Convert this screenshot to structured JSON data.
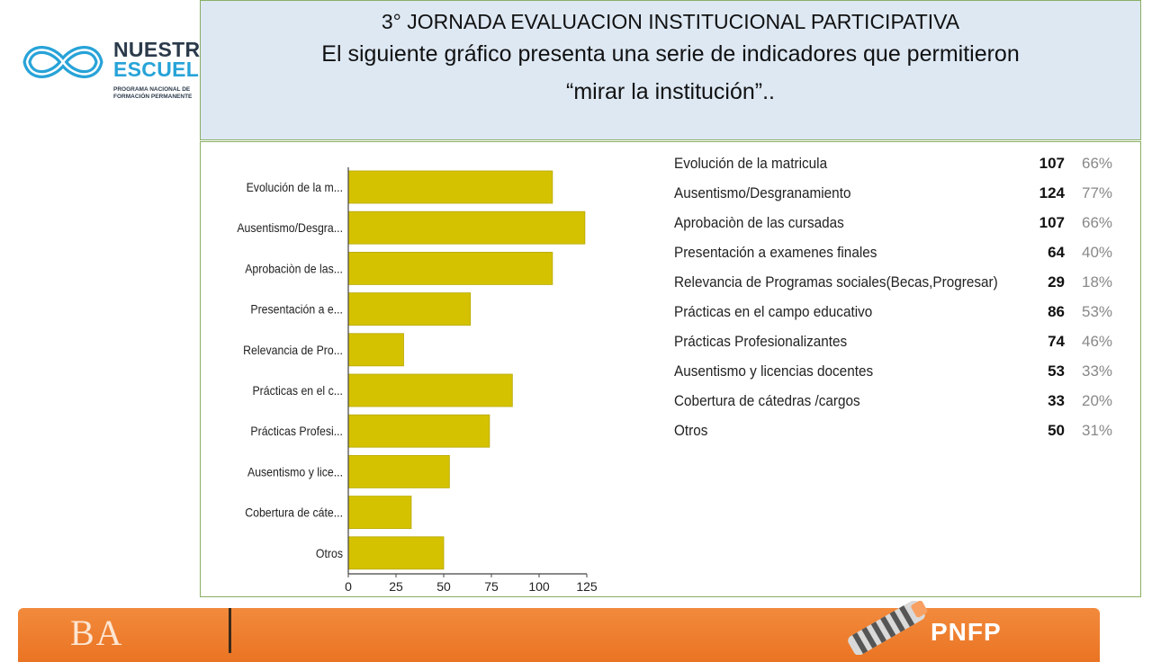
{
  "logo": {
    "word1": "NUESTRA",
    "word2": "ESCUELA",
    "sub1": "PROGRAMA NACIONAL DE",
    "sub2": "FORMACIÓN PERMANENTE"
  },
  "header": {
    "line1": "3° JORNADA EVALUACION INSTITUCIONAL PARTICIPATIVA",
    "line2": "El siguiente gráfico presenta una serie de indicadores que permitieron",
    "line3": "“mirar  la institución”.."
  },
  "colors": {
    "bar": "#d4c200",
    "bar_stroke": "#b8a800",
    "header_bg": "#dde8f3",
    "banner": "#ee7a2a"
  },
  "chart_data": {
    "type": "bar",
    "orientation": "horizontal",
    "categories": [
      "Evolución de la m...",
      "Ausentismo/Desgra...",
      "Aprobaciòn de las...",
      "Presentación a  e...",
      "Relevancia de Pro...",
      "Prácticas en el c...",
      "Prácticas Profesi...",
      "Ausentismo y lice...",
      "Cobertura de cáte...",
      "Otros"
    ],
    "values": [
      107,
      124,
      107,
      64,
      29,
      86,
      74,
      53,
      33,
      50
    ],
    "xlim": [
      0,
      125
    ],
    "xticks": [
      "0",
      "25",
      "50",
      "75",
      "100",
      "125"
    ],
    "grid": false
  },
  "table": {
    "rows": [
      {
        "label": "Evolución de la matricula",
        "count": "107",
        "pct": "66%"
      },
      {
        "label": "Ausentismo/Desgranamiento",
        "count": "124",
        "pct": "77%"
      },
      {
        "label": "Aprobaciòn de las cursadas",
        "count": "107",
        "pct": "66%"
      },
      {
        "label": "Presentación a  examenes finales",
        "count": "64",
        "pct": "40%"
      },
      {
        "label": "Relevancia de Programas sociales(Becas,Progresar)",
        "count": "29",
        "pct": "18%"
      },
      {
        "label": "Prácticas en el campo educativo",
        "count": "86",
        "pct": "53%"
      },
      {
        "label": "Prácticas Profesionalizantes",
        "count": "74",
        "pct": "46%"
      },
      {
        "label": "Ausentismo y licencias docentes",
        "count": "53",
        "pct": "33%"
      },
      {
        "label": "Cobertura de cátedras /cargos",
        "count": "33",
        "pct": "20%"
      },
      {
        "label": "Otros",
        "count": "50",
        "pct": "31%"
      }
    ]
  },
  "banner": {
    "left_text": "BA",
    "right_text": "PNFP",
    "cable_icon": "striped-cable-icon"
  }
}
